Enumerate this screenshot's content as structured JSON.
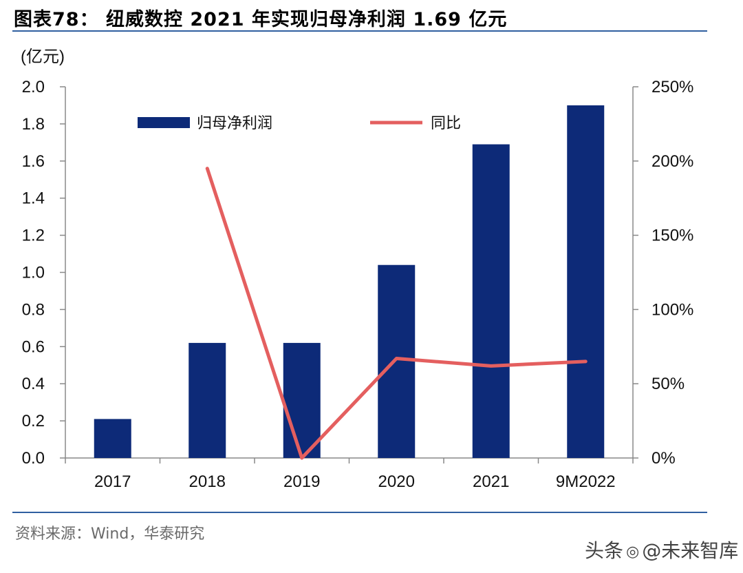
{
  "header": {
    "title": "图表78： 纽威数控 2021 年实现归母净利润 1.69 亿元"
  },
  "footer": {
    "source": "资料来源：Wind，华泰研究",
    "watermark_prefix": "头条",
    "watermark_suffix": "@未来智库"
  },
  "chart_data": {
    "type": "bar",
    "title": "",
    "categories": [
      "2017",
      "2018",
      "2019",
      "2020",
      "2021",
      "9M2022"
    ],
    "ylabel": "(亿元)",
    "ylim": [
      0,
      2.0
    ],
    "yticks": [
      "0.0",
      "0.2",
      "0.4",
      "0.6",
      "0.8",
      "1.0",
      "1.2",
      "1.4",
      "1.6",
      "1.8",
      "2.0"
    ],
    "y2lim": [
      0,
      250
    ],
    "y2ticks": [
      "0%",
      "50%",
      "100%",
      "150%",
      "200%",
      "250%"
    ],
    "legend_position": "top",
    "series": [
      {
        "name": "归母净利润",
        "type": "bar",
        "axis": "left",
        "color": "#0d2a78",
        "values": [
          0.21,
          0.62,
          0.62,
          1.04,
          1.69,
          1.9
        ]
      },
      {
        "name": "同比",
        "type": "line",
        "axis": "right",
        "color": "#e45f5f",
        "values": [
          null,
          195,
          0,
          67,
          62,
          65
        ]
      }
    ]
  }
}
